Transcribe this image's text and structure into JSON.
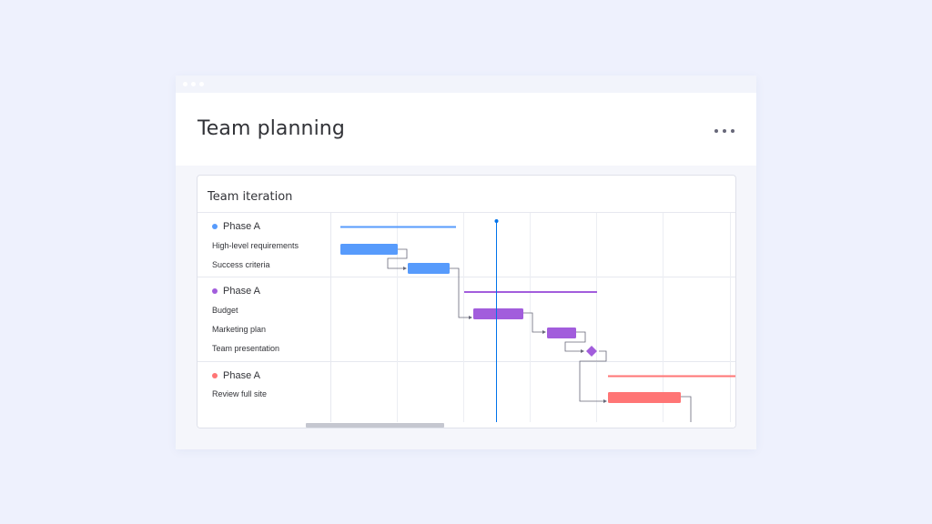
{
  "window": {
    "title": "Team planning",
    "more_icon": "more-horizontal-icon"
  },
  "board": {
    "title": "Team iteration",
    "groups": [
      {
        "label": "Phase A",
        "color": "#579bfc",
        "tasks": [
          "High-level requirements",
          "Success criteria"
        ]
      },
      {
        "label": "Phase A",
        "color": "#a25ddc",
        "tasks": [
          "Budget",
          "Marketing plan",
          "Team presentation"
        ]
      },
      {
        "label": "Phase A",
        "color": "#ff7575",
        "tasks": [
          "Review full site"
        ]
      }
    ]
  },
  "colors": {
    "background": "#eef1fd",
    "today_line": "#0073ea",
    "dependency_line": "#676879",
    "grid": "#e6e8ef"
  }
}
